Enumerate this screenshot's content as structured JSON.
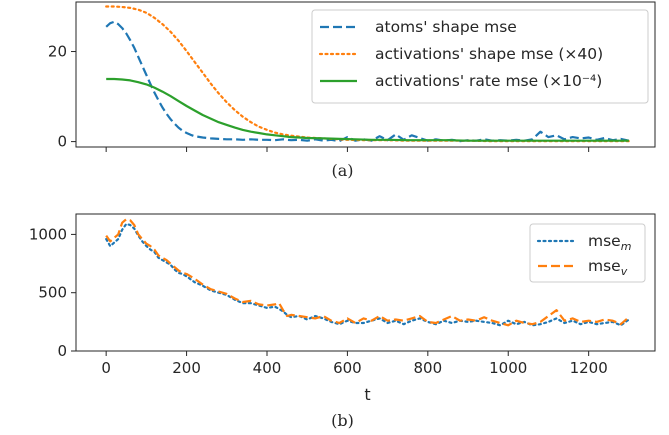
{
  "chart_data": [
    {
      "type": "line",
      "caption": "(a)",
      "xlim": [
        -75,
        1365
      ],
      "ylim": [
        -1.2,
        31
      ],
      "xticks": [
        0,
        200,
        400,
        600,
        800,
        1000,
        1200
      ],
      "show_xtick_labels": false,
      "yticks": [
        0,
        20
      ],
      "ytick_labels": [
        "0",
        "20"
      ],
      "grid": false,
      "legend_position": "top-right",
      "series": [
        {
          "name": "atoms' shape mse",
          "color": "#1f77b4",
          "style": "dashed",
          "x": [
            0,
            10,
            20,
            30,
            40,
            50,
            60,
            70,
            80,
            90,
            100,
            110,
            120,
            130,
            140,
            150,
            160,
            170,
            180,
            190,
            200,
            210,
            220,
            240,
            260,
            280,
            300,
            320,
            340,
            360,
            380,
            400,
            420,
            440,
            460,
            480,
            500,
            520,
            540,
            560,
            580,
            600,
            620,
            640,
            660,
            680,
            700,
            720,
            740,
            760,
            780,
            800,
            820,
            840,
            860,
            880,
            900,
            920,
            940,
            960,
            980,
            1000,
            1020,
            1040,
            1060,
            1080,
            1100,
            1120,
            1140,
            1160,
            1180,
            1200,
            1220,
            1240,
            1260,
            1280,
            1300
          ],
          "y": [
            25.5,
            26.3,
            26.6,
            26.1,
            25.2,
            24.0,
            22.5,
            20.8,
            18.8,
            16.8,
            14.8,
            12.8,
            10.9,
            9.2,
            7.6,
            6.2,
            5.0,
            4.0,
            3.1,
            2.4,
            1.9,
            1.5,
            1.2,
            0.9,
            0.7,
            0.6,
            0.5,
            0.5,
            0.4,
            0.5,
            0.4,
            0.4,
            0.3,
            0.5,
            0.3,
            0.4,
            0.2,
            0.5,
            0.2,
            0.4,
            0.1,
            1.0,
            0.2,
            0.5,
            0.2,
            1.2,
            0.3,
            1.6,
            0.4,
            1.4,
            0.8,
            0.2,
            0.5,
            0.2,
            0.4,
            0.1,
            0.3,
            0.2,
            0.5,
            0.2,
            0.3,
            0.2,
            0.4,
            0.2,
            0.5,
            2.2,
            1.0,
            1.4,
            0.5,
            1.0,
            0.7,
            0.9,
            0.4,
            0.8,
            0.3,
            0.6,
            0.2
          ]
        },
        {
          "name": "activations' shape mse (×40)",
          "color": "#ff7f0e",
          "style": "dotted",
          "x": [
            0,
            20,
            40,
            60,
            80,
            100,
            120,
            140,
            160,
            180,
            200,
            220,
            240,
            260,
            280,
            300,
            320,
            340,
            360,
            380,
            400,
            420,
            440,
            460,
            480,
            500,
            520,
            540,
            560,
            580,
            600,
            650,
            700,
            750,
            800,
            850,
            900,
            950,
            1000,
            1100,
            1200,
            1300
          ],
          "y": [
            30.0,
            30.0,
            29.9,
            29.7,
            29.3,
            28.6,
            27.5,
            26.1,
            24.4,
            22.4,
            20.1,
            17.7,
            15.3,
            12.9,
            10.7,
            8.7,
            7.0,
            5.5,
            4.3,
            3.3,
            2.6,
            2.0,
            1.6,
            1.3,
            1.1,
            0.9,
            0.8,
            0.7,
            0.6,
            0.5,
            0.4,
            0.3,
            0.3,
            0.2,
            0.2,
            0.2,
            0.2,
            0.1,
            0.1,
            0.1,
            0.1,
            0.1
          ]
        },
        {
          "name": "activations' rate mse (×10⁻⁴)",
          "color": "#2ca02c",
          "style": "solid",
          "x": [
            0,
            20,
            40,
            60,
            80,
            100,
            120,
            140,
            160,
            180,
            200,
            220,
            240,
            260,
            280,
            300,
            320,
            340,
            360,
            380,
            400,
            420,
            440,
            460,
            480,
            500,
            540,
            580,
            620,
            660,
            700,
            750,
            800,
            850,
            900,
            950,
            1000,
            1100,
            1200,
            1300
          ],
          "y": [
            13.9,
            13.9,
            13.8,
            13.6,
            13.2,
            12.7,
            12.0,
            11.1,
            10.1,
            9.0,
            7.9,
            6.9,
            5.9,
            5.1,
            4.3,
            3.7,
            3.1,
            2.6,
            2.2,
            1.9,
            1.6,
            1.4,
            1.2,
            1.0,
            0.9,
            0.8,
            0.7,
            0.6,
            0.5,
            0.4,
            0.4,
            0.3,
            0.3,
            0.3,
            0.2,
            0.2,
            0.2,
            0.2,
            0.2,
            0.2
          ]
        }
      ]
    },
    {
      "type": "line",
      "caption": "(b)",
      "xlabel": "t",
      "xlim": [
        -75,
        1365
      ],
      "ylim": [
        0,
        1175
      ],
      "xticks": [
        0,
        200,
        400,
        600,
        800,
        1000,
        1200
      ],
      "xtick_labels": [
        "0",
        "200",
        "400",
        "600",
        "800",
        "1000",
        "1200"
      ],
      "yticks": [
        0,
        500,
        1000
      ],
      "ytick_labels": [
        "0",
        "500",
        "1000"
      ],
      "grid": false,
      "legend_position": "top-right",
      "series": [
        {
          "name": "mse",
          "name_subscript": "m",
          "color": "#1f77b4",
          "style": "dotted",
          "x": [
            0,
            10,
            20,
            30,
            40,
            50,
            60,
            70,
            80,
            90,
            100,
            110,
            120,
            130,
            140,
            150,
            160,
            170,
            180,
            190,
            200,
            220,
            240,
            260,
            280,
            300,
            320,
            340,
            360,
            380,
            400,
            420,
            430,
            440,
            450,
            460,
            480,
            500,
            520,
            540,
            560,
            580,
            600,
            620,
            640,
            660,
            680,
            700,
            720,
            740,
            760,
            780,
            800,
            820,
            840,
            860,
            880,
            900,
            920,
            940,
            960,
            980,
            1000,
            1020,
            1040,
            1060,
            1080,
            1100,
            1120,
            1140,
            1160,
            1180,
            1200,
            1220,
            1240,
            1260,
            1280,
            1300
          ],
          "y": [
            960,
            900,
            930,
            960,
            1040,
            1090,
            1080,
            1050,
            990,
            940,
            900,
            870,
            850,
            800,
            780,
            760,
            740,
            700,
            670,
            660,
            640,
            590,
            560,
            520,
            500,
            480,
            440,
            410,
            410,
            390,
            370,
            380,
            360,
            340,
            310,
            290,
            300,
            270,
            300,
            280,
            250,
            230,
            260,
            240,
            240,
            260,
            280,
            240,
            260,
            230,
            260,
            280,
            250,
            230,
            260,
            240,
            260,
            250,
            260,
            250,
            240,
            220,
            260,
            230,
            250,
            220,
            230,
            250,
            280,
            240,
            260,
            230,
            250,
            230,
            240,
            250,
            220,
            270
          ]
        },
        {
          "name": "mse",
          "name_subscript": "v",
          "color": "#ff7f0e",
          "style": "dashed",
          "x": [
            0,
            10,
            20,
            30,
            40,
            50,
            60,
            70,
            80,
            90,
            100,
            110,
            120,
            130,
            140,
            150,
            160,
            170,
            180,
            190,
            200,
            220,
            240,
            260,
            280,
            300,
            320,
            340,
            360,
            380,
            400,
            420,
            430,
            440,
            450,
            460,
            480,
            500,
            520,
            540,
            560,
            580,
            600,
            620,
            640,
            660,
            680,
            700,
            720,
            740,
            760,
            780,
            800,
            820,
            840,
            860,
            880,
            900,
            920,
            940,
            960,
            980,
            1000,
            1020,
            1040,
            1060,
            1080,
            1100,
            1120,
            1140,
            1160,
            1180,
            1200,
            1220,
            1240,
            1260,
            1280,
            1300
          ],
          "y": [
            990,
            940,
            970,
            1000,
            1100,
            1130,
            1120,
            1080,
            1000,
            960,
            920,
            900,
            870,
            820,
            800,
            780,
            750,
            720,
            690,
            670,
            660,
            620,
            570,
            530,
            510,
            490,
            450,
            420,
            430,
            400,
            390,
            400,
            410,
            350,
            300,
            310,
            300,
            290,
            280,
            300,
            260,
            240,
            280,
            240,
            280,
            260,
            300,
            260,
            270,
            260,
            280,
            300,
            250,
            240,
            270,
            300,
            260,
            270,
            260,
            290,
            260,
            240,
            220,
            260,
            240,
            230,
            250,
            300,
            350,
            260,
            280,
            250,
            260,
            250,
            270,
            260,
            230,
            290
          ]
        }
      ]
    }
  ]
}
